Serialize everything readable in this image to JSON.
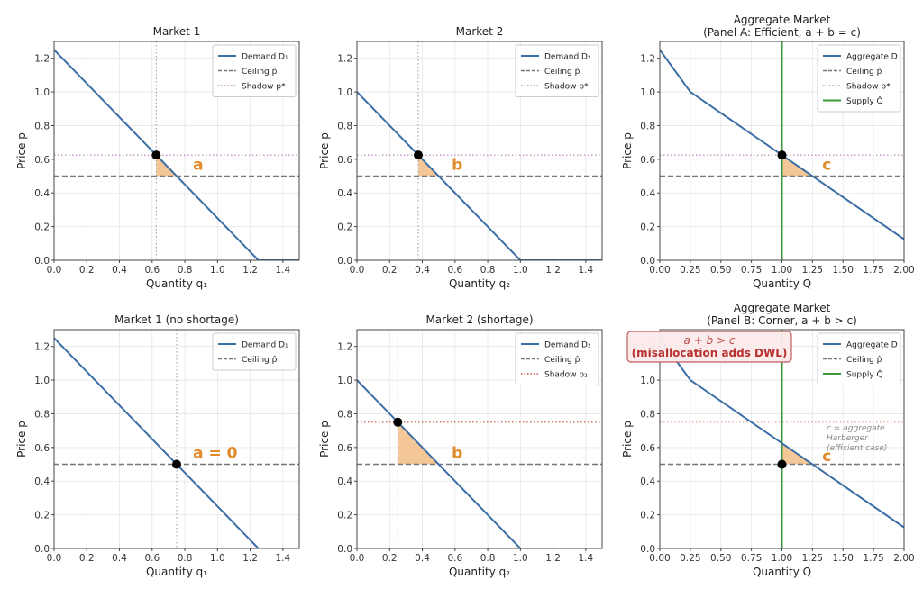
{
  "colors": {
    "demand": "#3b6ea5",
    "ceiling": "#777777",
    "shadow_purple": "#b06ab0",
    "shadow_red": "#c0392b",
    "supply": "#3a9a3a",
    "fill": "#f2c18c",
    "label": "#e08a2a",
    "grid": "#e6e6e6",
    "note_box_border": "#c25a5a"
  },
  "chart_data": [
    {
      "id": "p1",
      "type": "line",
      "title": "Market 1",
      "xlabel": "Quantity q₁",
      "ylabel": "Price p",
      "xlim": [
        0,
        1.5
      ],
      "ylim": [
        0,
        1.3
      ],
      "xticks": [
        0.0,
        0.2,
        0.4,
        0.6,
        0.8,
        1.0,
        1.2,
        1.4
      ],
      "xtick_labels": [
        "0.0",
        "0.2",
        "0.4",
        "0.6",
        "0.8",
        "1.0",
        "1.2",
        "1.4"
      ],
      "yticks": [
        0.0,
        0.2,
        0.4,
        0.6,
        0.8,
        1.0,
        1.2
      ],
      "ytick_labels": [
        "0.0",
        "0.2",
        "0.4",
        "0.6",
        "0.8",
        "1.0",
        "1.2"
      ],
      "grid": true,
      "demand": [
        [
          0,
          1.25
        ],
        [
          1.25,
          0
        ],
        [
          1.5,
          0
        ]
      ],
      "ceiling": 0.5,
      "shadow": {
        "value": 0.625,
        "color": "shadow_purple"
      },
      "vline": 0.625,
      "point": [
        0.625,
        0.625
      ],
      "fill": [
        [
          0.625,
          0.625
        ],
        [
          0.75,
          0.5
        ],
        [
          0.625,
          0.5
        ]
      ],
      "area_label": {
        "text": "a",
        "x": 0.85,
        "y": 0.57
      },
      "legend": [
        "Demand D₁",
        "Ceiling p̂",
        "Shadow p*"
      ],
      "legend_styles": [
        "solid-demand",
        "dashed-ceiling",
        "dotted-purple"
      ],
      "legend_position": "top-right"
    },
    {
      "id": "p2",
      "type": "line",
      "title": "Market 2",
      "xlabel": "Quantity q₂",
      "ylabel": "Price p",
      "xlim": [
        0,
        1.5
      ],
      "ylim": [
        0,
        1.3
      ],
      "xticks": [
        0.0,
        0.2,
        0.4,
        0.6,
        0.8,
        1.0,
        1.2,
        1.4
      ],
      "xtick_labels": [
        "0.0",
        "0.2",
        "0.4",
        "0.6",
        "0.8",
        "1.0",
        "1.2",
        "1.4"
      ],
      "yticks": [
        0.0,
        0.2,
        0.4,
        0.6,
        0.8,
        1.0,
        1.2
      ],
      "ytick_labels": [
        "0.0",
        "0.2",
        "0.4",
        "0.6",
        "0.8",
        "1.0",
        "1.2"
      ],
      "grid": true,
      "demand": [
        [
          0,
          1.0
        ],
        [
          1.0,
          0
        ],
        [
          1.5,
          0
        ]
      ],
      "ceiling": 0.5,
      "shadow": {
        "value": 0.625,
        "color": "shadow_purple"
      },
      "vline": 0.375,
      "point": [
        0.375,
        0.625
      ],
      "fill": [
        [
          0.375,
          0.625
        ],
        [
          0.5,
          0.5
        ],
        [
          0.375,
          0.5
        ]
      ],
      "area_label": {
        "text": "b",
        "x": 0.58,
        "y": 0.57
      },
      "legend": [
        "Demand D₂",
        "Ceiling p̂",
        "Shadow p*"
      ],
      "legend_styles": [
        "solid-demand",
        "dashed-ceiling",
        "dotted-purple"
      ],
      "legend_position": "top-right"
    },
    {
      "id": "p3",
      "type": "line",
      "title": "Aggregate Market",
      "subtitle": "(Panel A: Efficient, a + b = c)",
      "xlabel": "Quantity Q",
      "ylabel": "Price p",
      "xlim": [
        0,
        2.0
      ],
      "ylim": [
        0,
        1.3
      ],
      "xticks": [
        0.0,
        0.25,
        0.5,
        0.75,
        1.0,
        1.25,
        1.5,
        1.75,
        2.0
      ],
      "xtick_labels": [
        "0.00",
        "0.25",
        "0.50",
        "0.75",
        "1.00",
        "1.25",
        "1.50",
        "1.75",
        "2.00"
      ],
      "yticks": [
        0.0,
        0.2,
        0.4,
        0.6,
        0.8,
        1.0,
        1.2
      ],
      "ytick_labels": [
        "0.0",
        "0.2",
        "0.4",
        "0.6",
        "0.8",
        "1.0",
        "1.2"
      ],
      "grid": true,
      "demand": [
        [
          0,
          1.25
        ],
        [
          0.25,
          1.0
        ],
        [
          2.0,
          0.125
        ]
      ],
      "ceiling": 0.5,
      "shadow": {
        "value": 0.625,
        "color": "shadow_purple"
      },
      "supply": 1.0,
      "point": [
        1.0,
        0.625
      ],
      "fill": [
        [
          1.0,
          0.625
        ],
        [
          1.25,
          0.5
        ],
        [
          1.0,
          0.5
        ]
      ],
      "area_label": {
        "text": "c",
        "x": 1.33,
        "y": 0.57
      },
      "legend": [
        "Aggregate D",
        "Ceiling p̂",
        "Shadow p*",
        "Supply Q̂"
      ],
      "legend_styles": [
        "solid-demand",
        "dashed-ceiling",
        "dotted-purple",
        "solid-supply"
      ],
      "legend_position": "top-right"
    },
    {
      "id": "p4",
      "type": "line",
      "title": "Market 1 (no shortage)",
      "xlabel": "Quantity q₁",
      "ylabel": "Price p",
      "xlim": [
        0,
        1.5
      ],
      "ylim": [
        0,
        1.3
      ],
      "xticks": [
        0.0,
        0.2,
        0.4,
        0.6,
        0.8,
        1.0,
        1.2,
        1.4
      ],
      "xtick_labels": [
        "0.0",
        "0.2",
        "0.4",
        "0.6",
        "0.8",
        "1.0",
        "1.2",
        "1.4"
      ],
      "yticks": [
        0.0,
        0.2,
        0.4,
        0.6,
        0.8,
        1.0,
        1.2
      ],
      "ytick_labels": [
        "0.0",
        "0.2",
        "0.4",
        "0.6",
        "0.8",
        "1.0",
        "1.2"
      ],
      "grid": true,
      "demand": [
        [
          0,
          1.25
        ],
        [
          1.25,
          0
        ],
        [
          1.5,
          0
        ]
      ],
      "ceiling": 0.5,
      "vline": 0.75,
      "point": [
        0.75,
        0.5
      ],
      "area_label": {
        "text": "a = 0",
        "x": 0.85,
        "y": 0.57
      },
      "legend": [
        "Demand D₁",
        "Ceiling p̂"
      ],
      "legend_styles": [
        "solid-demand",
        "dashed-ceiling"
      ],
      "legend_position": "top-right"
    },
    {
      "id": "p5",
      "type": "line",
      "title": "Market 2 (shortage)",
      "xlabel": "Quantity q₂",
      "ylabel": "Price p",
      "xlim": [
        0,
        1.5
      ],
      "ylim": [
        0,
        1.3
      ],
      "xticks": [
        0.0,
        0.2,
        0.4,
        0.6,
        0.8,
        1.0,
        1.2,
        1.4
      ],
      "xtick_labels": [
        "0.0",
        "0.2",
        "0.4",
        "0.6",
        "0.8",
        "1.0",
        "1.2",
        "1.4"
      ],
      "yticks": [
        0.0,
        0.2,
        0.4,
        0.6,
        0.8,
        1.0,
        1.2
      ],
      "ytick_labels": [
        "0.0",
        "0.2",
        "0.4",
        "0.6",
        "0.8",
        "1.0",
        "1.2"
      ],
      "grid": true,
      "demand": [
        [
          0,
          1.0
        ],
        [
          1.0,
          0
        ],
        [
          1.5,
          0
        ]
      ],
      "ceiling": 0.5,
      "shadow": {
        "value": 0.75,
        "color": "shadow_red"
      },
      "vline": 0.25,
      "point": [
        0.25,
        0.75
      ],
      "fill": [
        [
          0.25,
          0.75
        ],
        [
          0.5,
          0.5
        ],
        [
          0.25,
          0.5
        ]
      ],
      "area_label": {
        "text": "b",
        "x": 0.58,
        "y": 0.57
      },
      "legend": [
        "Demand D₂",
        "Ceiling p̂",
        "Shadow p₂"
      ],
      "legend_styles": [
        "solid-demand",
        "dashed-ceiling",
        "dotted-red"
      ],
      "legend_position": "top-right"
    },
    {
      "id": "p6",
      "type": "line",
      "title": "Aggregate Market",
      "subtitle": "(Panel B: Corner, a + b > c)",
      "xlabel": "Quantity Q",
      "ylabel": "Price p",
      "xlim": [
        0,
        2.0
      ],
      "ylim": [
        0,
        1.3
      ],
      "xticks": [
        0.0,
        0.25,
        0.5,
        0.75,
        1.0,
        1.25,
        1.5,
        1.75,
        2.0
      ],
      "xtick_labels": [
        "0.00",
        "0.25",
        "0.50",
        "0.75",
        "1.00",
        "1.25",
        "1.50",
        "1.75",
        "2.00"
      ],
      "yticks": [
        0.0,
        0.2,
        0.4,
        0.6,
        0.8,
        1.0,
        1.2
      ],
      "ytick_labels": [
        "0.0",
        "0.2",
        "0.4",
        "0.6",
        "0.8",
        "1.0",
        "1.2"
      ],
      "grid": true,
      "demand": [
        [
          0,
          1.25
        ],
        [
          0.25,
          1.0
        ],
        [
          2.0,
          0.125
        ]
      ],
      "ceiling": 0.5,
      "shadow": {
        "value": 0.75,
        "color": "shadow_red",
        "faint": true
      },
      "supply": 1.0,
      "point": [
        1.0,
        0.5
      ],
      "fill": [
        [
          1.0,
          0.625
        ],
        [
          1.25,
          0.5
        ],
        [
          1.0,
          0.5
        ]
      ],
      "area_label": {
        "text": "c",
        "x": 1.33,
        "y": 0.55
      },
      "note": [
        "c = aggregate",
        "Harberger",
        "(efficient case)"
      ],
      "warning": [
        "a + b > c",
        "(misallocation adds DWL)"
      ],
      "legend": [
        "Aggregate D",
        "Ceiling p̂",
        "Supply Q̂"
      ],
      "legend_styles": [
        "solid-demand",
        "dashed-ceiling",
        "solid-supply"
      ],
      "legend_position": "top-right"
    }
  ]
}
